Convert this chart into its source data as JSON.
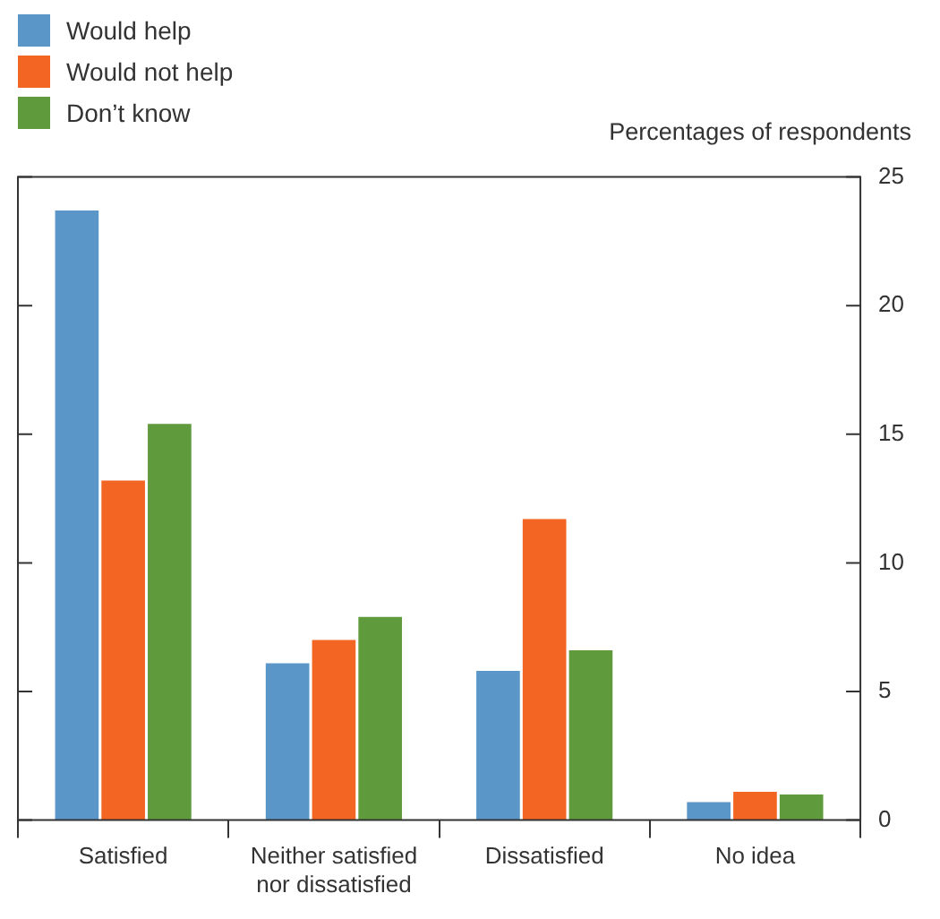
{
  "chart_data": {
    "type": "bar",
    "ylabel": "Percentages of respondents",
    "categories": [
      "Satisfied",
      "Neither satisfied nor dissatisfied",
      "Dissatisfied",
      "No idea"
    ],
    "series": [
      {
        "name": "Would help",
        "color": "#5a96c8",
        "values": [
          23.7,
          6.1,
          5.8,
          0.7
        ]
      },
      {
        "name": "Would not help",
        "color": "#f26522",
        "values": [
          13.2,
          7.0,
          11.7,
          1.1
        ]
      },
      {
        "name": "Don’t know",
        "color": "#5f9a3c",
        "values": [
          15.4,
          7.9,
          6.6,
          1.0
        ]
      }
    ],
    "ylim": [
      0,
      25
    ],
    "yticks": [
      0,
      5,
      10,
      15,
      20,
      25
    ],
    "grid": false,
    "legend": "top left"
  }
}
